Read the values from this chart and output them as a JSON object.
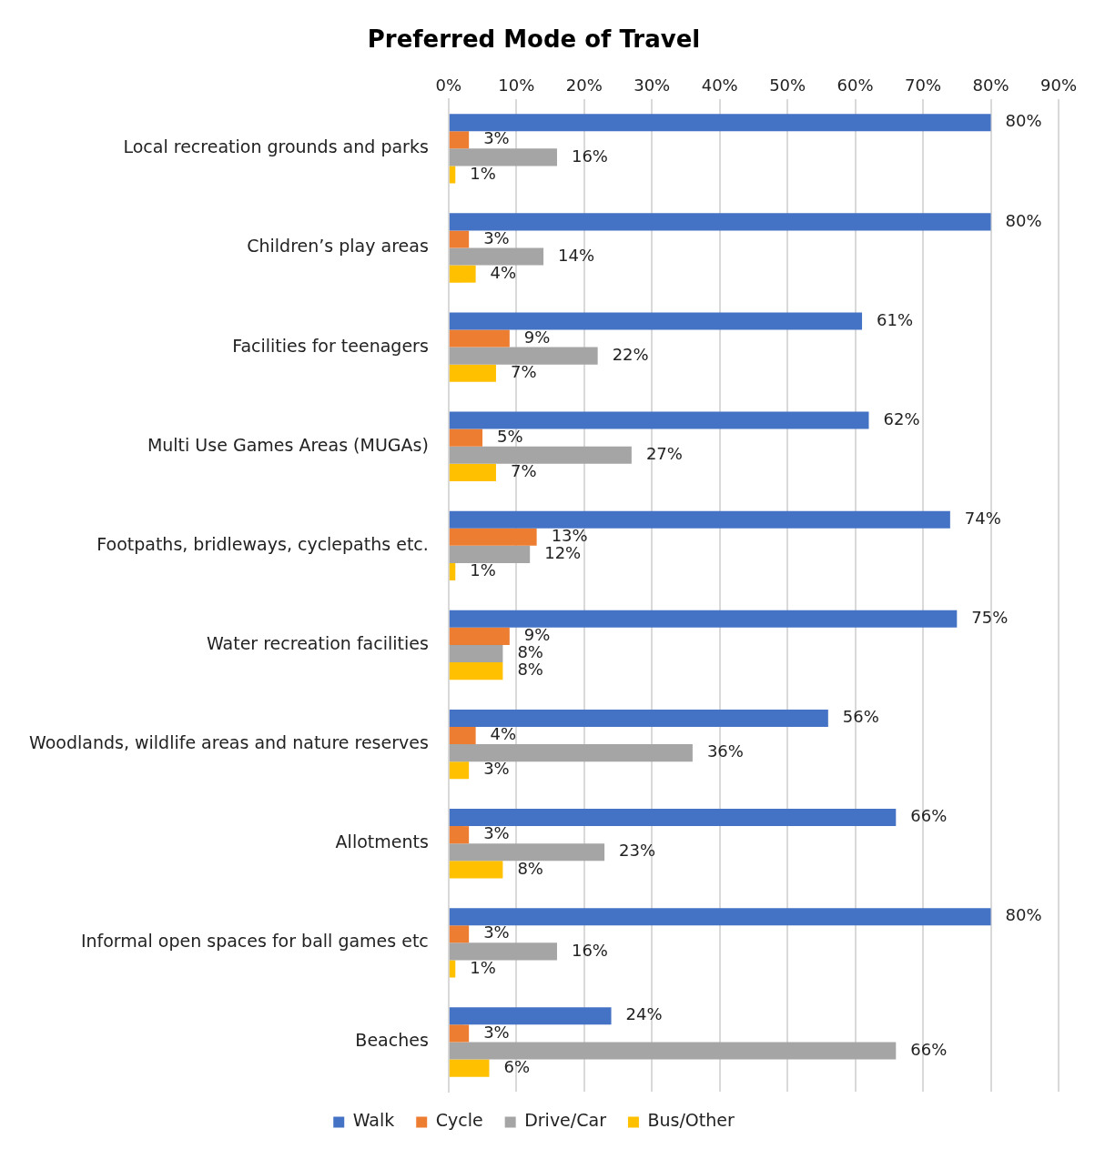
{
  "chart_data": {
    "type": "bar",
    "orientation": "horizontal",
    "title": "Preferred Mode of Travel",
    "categories": [
      "Local recreation grounds and parks",
      "Children’s play areas",
      "Facilities for teenagers",
      "Multi Use Games Areas (MUGAs)",
      "Footpaths, bridleways, cyclepaths etc.",
      "Water recreation facilities",
      "Woodlands, wildlife areas and nature reserves",
      "Allotments",
      "Informal open spaces for ball games etc",
      "Beaches"
    ],
    "series": [
      {
        "name": "Walk",
        "color": "#4472c4",
        "values": [
          80,
          80,
          61,
          62,
          74,
          75,
          56,
          66,
          80,
          24
        ],
        "value_labels": [
          "80%",
          "80%",
          "61%",
          "62%",
          "74%",
          "75%",
          "56%",
          "66%",
          "80%",
          "24%"
        ]
      },
      {
        "name": "Cycle",
        "color": "#ed7d31",
        "values": [
          3,
          3,
          9,
          5,
          13,
          9,
          4,
          3,
          3,
          3
        ],
        "value_labels": [
          "3%",
          "3%",
          "9%",
          "5%",
          "13%",
          "9%",
          "4%",
          "3%",
          "3%",
          "3%"
        ]
      },
      {
        "name": "Drive/Car",
        "color": "#a5a5a5",
        "values": [
          16,
          14,
          22,
          27,
          12,
          8,
          36,
          23,
          16,
          66
        ],
        "value_labels": [
          "16%",
          "14%",
          "22%",
          "27%",
          "12%",
          "8%",
          "36%",
          "23%",
          "16%",
          "66%"
        ]
      },
      {
        "name": "Bus/Other",
        "color": "#ffc000",
        "values": [
          1,
          4,
          7,
          7,
          1,
          8,
          3,
          8,
          1,
          6
        ],
        "value_labels": [
          "1%",
          "4%",
          "7%",
          "7%",
          "1%",
          "8%",
          "3%",
          "8%",
          "1%",
          "6%"
        ]
      }
    ],
    "xlim": [
      0,
      90
    ],
    "xticks": [
      {
        "value": 0,
        "label": "0%"
      },
      {
        "value": 10,
        "label": "10%"
      },
      {
        "value": 20,
        "label": "20%"
      },
      {
        "value": 30,
        "label": "30%"
      },
      {
        "value": 40,
        "label": "40%"
      },
      {
        "value": 50,
        "label": "50%"
      },
      {
        "value": 60,
        "label": "60%"
      },
      {
        "value": 70,
        "label": "70%"
      },
      {
        "value": 80,
        "label": "80%"
      },
      {
        "value": 90,
        "label": "90%"
      }
    ],
    "grid": "x",
    "legend": "bottom"
  }
}
